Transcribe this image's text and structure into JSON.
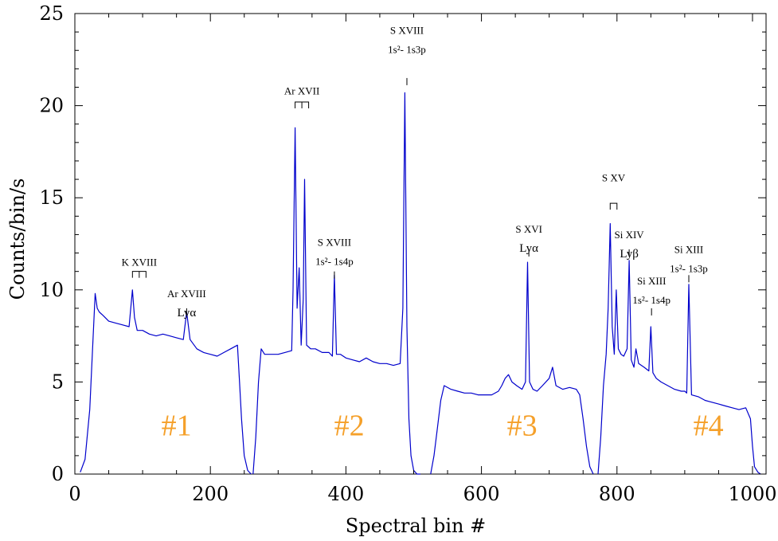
{
  "chart_data": {
    "type": "line",
    "title": "",
    "xlabel": "Spectral bin #",
    "ylabel": "Counts/bin/s",
    "xlim": [
      0,
      1020
    ],
    "ylim": [
      0,
      25
    ],
    "xticks": [
      0,
      200,
      400,
      600,
      800,
      1000
    ],
    "yticks": [
      0,
      5,
      10,
      15,
      20,
      25
    ],
    "line_color": "#0000cc",
    "region_color": "#f5a02a",
    "segments": [
      {
        "x": [
          8,
          15,
          22,
          27,
          30,
          33,
          36,
          42,
          50,
          60,
          70,
          80,
          85,
          88,
          92,
          100,
          110,
          120,
          130,
          140,
          150,
          160,
          165,
          170,
          180,
          190,
          200,
          210,
          220,
          230,
          240,
          243,
          246,
          250,
          255,
          260
        ],
        "y": [
          0.1,
          0.8,
          3.5,
          7.5,
          9.8,
          9.0,
          8.8,
          8.6,
          8.3,
          8.2,
          8.1,
          8.0,
          10.0,
          8.5,
          7.8,
          7.8,
          7.6,
          7.5,
          7.6,
          7.5,
          7.4,
          7.3,
          8.8,
          7.3,
          6.8,
          6.6,
          6.5,
          6.4,
          6.6,
          6.8,
          7.0,
          5.0,
          3.0,
          1.0,
          0.2,
          0.0
        ]
      },
      {
        "x": [
          263,
          267,
          271,
          275,
          280,
          290,
          300,
          310,
          320,
          322,
          325,
          328,
          331,
          334,
          337,
          339,
          342,
          345,
          348,
          355,
          365,
          375,
          380,
          383,
          386,
          392,
          400,
          410,
          420,
          430,
          440,
          450,
          460,
          470,
          480,
          484,
          487,
          490,
          493,
          496,
          500,
          505,
          510
        ],
        "y": [
          0.0,
          2.0,
          5.0,
          6.8,
          6.5,
          6.5,
          6.5,
          6.6,
          6.7,
          10.0,
          18.8,
          9.0,
          11.2,
          7.0,
          9.5,
          16.0,
          7.0,
          6.9,
          6.8,
          6.8,
          6.6,
          6.6,
          6.4,
          10.8,
          6.5,
          6.5,
          6.3,
          6.2,
          6.1,
          6.3,
          6.1,
          6.0,
          6.0,
          5.9,
          6.0,
          9.0,
          20.7,
          8.0,
          3.0,
          1.0,
          0.2,
          0.0,
          0.0
        ]
      },
      {
        "x": [
          525,
          530,
          535,
          540,
          545,
          555,
          565,
          575,
          585,
          595,
          605,
          615,
          625,
          630,
          635,
          640,
          645,
          652,
          660,
          665,
          668,
          671,
          676,
          682,
          690,
          700,
          705,
          710,
          720,
          730,
          740,
          745,
          750,
          755,
          760,
          765
        ],
        "y": [
          0.0,
          1.0,
          2.5,
          4.0,
          4.8,
          4.6,
          4.5,
          4.4,
          4.4,
          4.3,
          4.3,
          4.3,
          4.5,
          4.8,
          5.2,
          5.4,
          5.0,
          4.8,
          4.6,
          5.0,
          11.5,
          5.0,
          4.6,
          4.5,
          4.8,
          5.2,
          5.8,
          4.8,
          4.6,
          4.7,
          4.6,
          4.3,
          3.0,
          1.5,
          0.4,
          0.0
        ]
      },
      {
        "x": [
          772,
          776,
          780,
          784,
          787,
          790,
          793,
          796,
          799,
          802,
          806,
          810,
          815,
          818,
          821,
          825,
          828,
          832,
          840,
          847,
          850,
          853,
          858,
          865,
          875,
          885,
          895,
          900,
          903,
          906,
          910,
          920,
          930,
          940,
          950,
          960,
          970,
          980,
          990,
          997,
          1000,
          1003,
          1008,
          1012
        ],
        "y": [
          0.0,
          2.0,
          4.8,
          6.5,
          9.0,
          13.6,
          8.0,
          6.5,
          10.0,
          6.8,
          6.5,
          6.4,
          6.8,
          11.6,
          6.2,
          5.8,
          6.8,
          6.0,
          5.8,
          5.6,
          8.0,
          5.5,
          5.2,
          5.0,
          4.8,
          4.6,
          4.5,
          4.5,
          4.4,
          10.3,
          4.3,
          4.2,
          4.0,
          3.9,
          3.8,
          3.7,
          3.6,
          3.5,
          3.6,
          3.0,
          1.5,
          0.4,
          0.1,
          0.0
        ]
      }
    ],
    "annotations": [
      {
        "id": "kxviii",
        "x": 95,
        "y_top": 11.3,
        "y_line": 11.0,
        "bracket": [
          85,
          105
        ],
        "lines": [
          "K XVIII"
        ]
      },
      {
        "id": "arxviii",
        "x": 165,
        "y_top": 9.6,
        "y_line": 9.0,
        "bracket": null,
        "lines": [
          "Ar XVIII",
          "Lyα"
        ]
      },
      {
        "id": "arxvii",
        "x": 335,
        "y_top": 20.6,
        "y_line": 20.2,
        "bracket": [
          325,
          345
        ],
        "lines": [
          "Ar XVII"
        ]
      },
      {
        "id": "sxviii-a",
        "x": 383,
        "y_top": 12.4,
        "y_line": 11.0,
        "bracket": null,
        "lines": [
          "S XVIII",
          "1s²- 1s4p"
        ]
      },
      {
        "id": "sxviii-b",
        "x": 490,
        "y_top": 23.9,
        "y_line": 21.5,
        "bracket": null,
        "lines": [
          "S XVIII",
          "1s²- 1s3p"
        ]
      },
      {
        "id": "sxvi",
        "x": 670,
        "y_top": 13.1,
        "y_line": 12.2,
        "bracket": null,
        "lines": [
          "S XVI",
          "Lyα"
        ]
      },
      {
        "id": "sxv",
        "x": 795,
        "y_top": 15.9,
        "y_line": 14.7,
        "bracket": [
          790,
          800
        ],
        "lines": [
          "S XV"
        ]
      },
      {
        "id": "sixiv",
        "x": 818,
        "y_top": 12.8,
        "y_line": 12.2,
        "bracket": null,
        "lines": [
          "Si XIV",
          "Lyβ"
        ]
      },
      {
        "id": "sixiii-a",
        "x": 851,
        "y_top": 10.3,
        "y_line": 9.0,
        "bracket": null,
        "lines": [
          "Si XIII",
          "1s²- 1s4p"
        ]
      },
      {
        "id": "sixiii-b",
        "x": 906,
        "y_top": 12.0,
        "y_line": 10.8,
        "bracket": null,
        "lines": [
          "Si XIII",
          "1s²- 1s3p"
        ]
      }
    ],
    "regions": [
      {
        "label": "#1",
        "x": 150,
        "y": 2.1
      },
      {
        "label": "#2",
        "x": 405,
        "y": 2.1
      },
      {
        "label": "#3",
        "x": 660,
        "y": 2.1
      },
      {
        "label": "#4",
        "x": 935,
        "y": 2.1
      }
    ]
  }
}
